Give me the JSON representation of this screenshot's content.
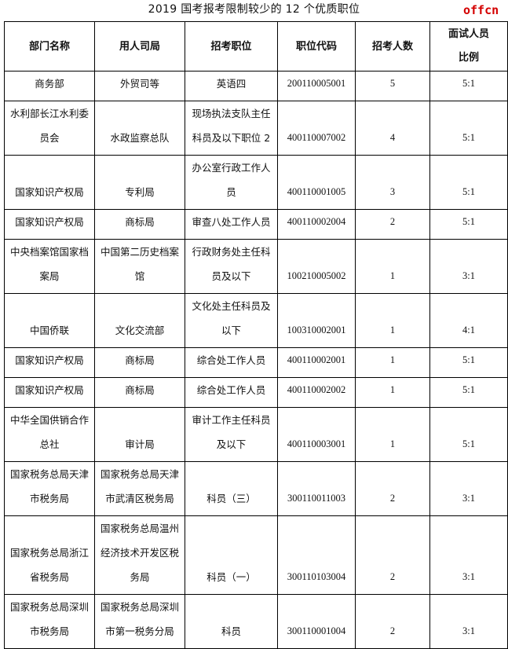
{
  "title": "2019 国考报考限制较少的 12 个优质职位",
  "headers": [
    [
      "部门名称"
    ],
    [
      "用人司局"
    ],
    [
      "招考职位"
    ],
    [
      "职位代码"
    ],
    [
      "招考人数"
    ],
    [
      "面试人员",
      "比例"
    ]
  ],
  "rows": [
    [
      [
        "商务部"
      ],
      [
        "外贸司等"
      ],
      [
        "英语四"
      ],
      [
        "200110005001"
      ],
      [
        "5"
      ],
      [
        "5:1"
      ]
    ],
    [
      [
        "水利部长江水利委",
        "员会"
      ],
      [
        "水政监察总队"
      ],
      [
        "现场执法支队主任",
        "科员及以下职位 2"
      ],
      [
        "400110007002"
      ],
      [
        "4"
      ],
      [
        "5:1"
      ]
    ],
    [
      [
        "国家知识产权局"
      ],
      [
        "专利局"
      ],
      [
        "办公室行政工作人",
        "员"
      ],
      [
        "400110001005"
      ],
      [
        "3"
      ],
      [
        "5:1"
      ]
    ],
    [
      [
        "国家知识产权局"
      ],
      [
        "商标局"
      ],
      [
        "审查八处工作人员"
      ],
      [
        "400110002004"
      ],
      [
        "2"
      ],
      [
        "5:1"
      ]
    ],
    [
      [
        "中央档案馆国家档",
        "案局"
      ],
      [
        "中国第二历史档案",
        "馆"
      ],
      [
        "行政财务处主任科",
        "员及以下"
      ],
      [
        "100210005002"
      ],
      [
        "1"
      ],
      [
        "3:1"
      ]
    ],
    [
      [
        "中国侨联"
      ],
      [
        "文化交流部"
      ],
      [
        "文化处主任科员及",
        "以下"
      ],
      [
        "100310002001"
      ],
      [
        "1"
      ],
      [
        "4:1"
      ]
    ],
    [
      [
        "国家知识产权局"
      ],
      [
        "商标局"
      ],
      [
        "综合处工作人员"
      ],
      [
        "400110002001"
      ],
      [
        "1"
      ],
      [
        "5:1"
      ]
    ],
    [
      [
        "国家知识产权局"
      ],
      [
        "商标局"
      ],
      [
        "综合处工作人员"
      ],
      [
        "400110002002"
      ],
      [
        "1"
      ],
      [
        "5:1"
      ]
    ],
    [
      [
        "中华全国供销合作",
        "总社"
      ],
      [
        "审计局"
      ],
      [
        "审计工作主任科员",
        "及以下"
      ],
      [
        "400110003001"
      ],
      [
        "1"
      ],
      [
        "5:1"
      ]
    ],
    [
      [
        "国家税务总局天津",
        "市税务局"
      ],
      [
        "国家税务总局天津",
        "市武清区税务局"
      ],
      [
        "科员（三）"
      ],
      [
        "300110011003"
      ],
      [
        "2"
      ],
      [
        "3:1"
      ]
    ],
    [
      [
        "国家税务总局浙江",
        "省税务局"
      ],
      [
        "国家税务总局温州",
        "经济技术开发区税",
        "务局"
      ],
      [
        "科员（一）"
      ],
      [
        "300110103004"
      ],
      [
        "2"
      ],
      [
        "3:1"
      ]
    ],
    [
      [
        "国家税务总局深圳",
        "市税务局"
      ],
      [
        "国家税务总局深圳",
        "市第一税务分局"
      ],
      [
        "科员"
      ],
      [
        "300110001004"
      ],
      [
        "2"
      ],
      [
        "3:1"
      ]
    ]
  ],
  "watermark": "offcn"
}
